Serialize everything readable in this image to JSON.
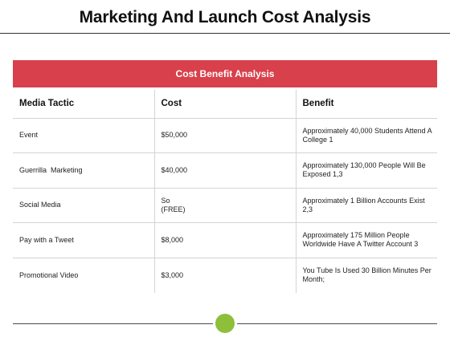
{
  "slide": {
    "title": "Marketing And Launch Cost Analysis"
  },
  "table": {
    "banner": "Cost Benefit Analysis",
    "headers": [
      "Media Tactic",
      "Cost",
      "Benefit"
    ],
    "rows": [
      {
        "tactic": "Event",
        "cost": "$50,000",
        "benefit": "Approximately 40,000 Students Attend A College 1"
      },
      {
        "tactic": "Guerrilla  Marketing",
        "cost": "$40,000",
        "benefit": "Approximately 130,000 People Will Be Exposed 1,3"
      },
      {
        "tactic": "Social Media",
        "cost": "So\n(FREE)",
        "benefit": "Approximately 1 Billion Accounts Exist 2,3"
      },
      {
        "tactic": "Pay with a Tweet",
        "cost": "$8,000",
        "benefit": "Approximately 175 Million People Worldwide Have A Twitter Account 3"
      },
      {
        "tactic": "Promotional Video",
        "cost": "$3,000",
        "benefit": "You Tube Is Used 30 Billion Minutes Per Month;"
      }
    ]
  },
  "colors": {
    "banner": "#d8404b",
    "accent_dot": "#8dbf3b"
  }
}
